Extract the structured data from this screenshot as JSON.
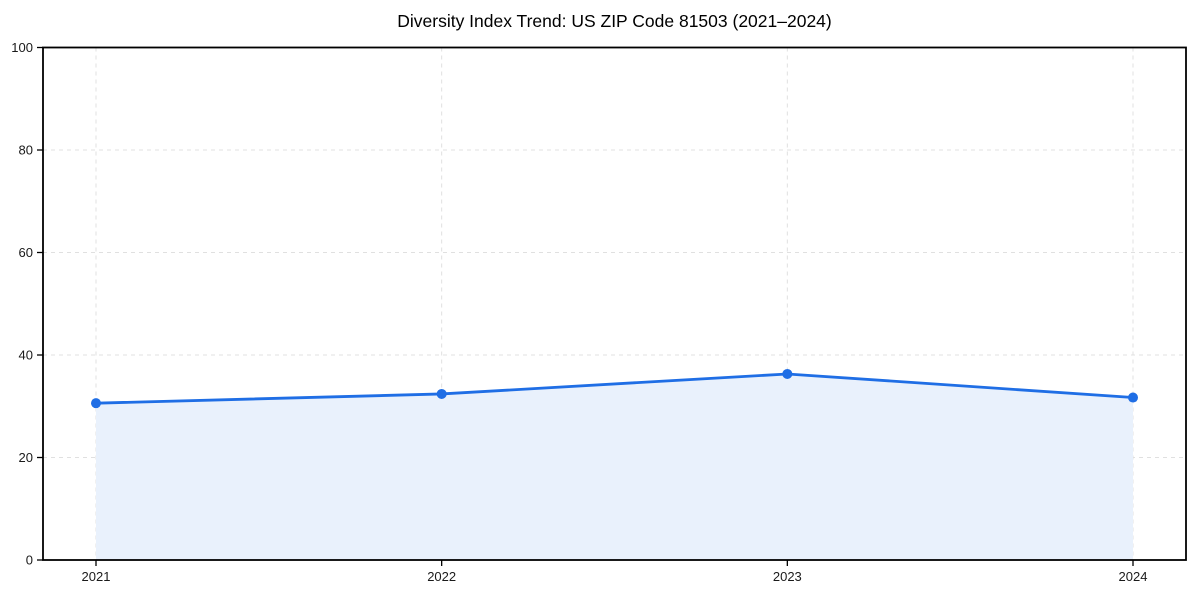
{
  "chart_data": {
    "type": "area",
    "title": "Diversity Index Trend: US ZIP Code 81503 (2021–2024)",
    "x": [
      "2021",
      "2022",
      "2023",
      "2024"
    ],
    "series": [
      {
        "name": "Diversity Index",
        "values": [
          30.6,
          32.4,
          36.3,
          31.7
        ]
      }
    ],
    "xlabel": "",
    "ylabel": "",
    "ylim": [
      0,
      100
    ],
    "yticks": [
      0,
      20,
      40,
      60,
      80,
      100
    ],
    "grid": true,
    "grid_style": "dashed",
    "legend_position": "none",
    "marker": "circle",
    "colors": {
      "line": "#1f6ee5",
      "marker": "#1f6ee5",
      "fill": "#e9f1fc",
      "grid": "#e0e0e0",
      "spine": "#000000",
      "tick_text": "#1a1a1a",
      "background": "#ffffff"
    }
  }
}
